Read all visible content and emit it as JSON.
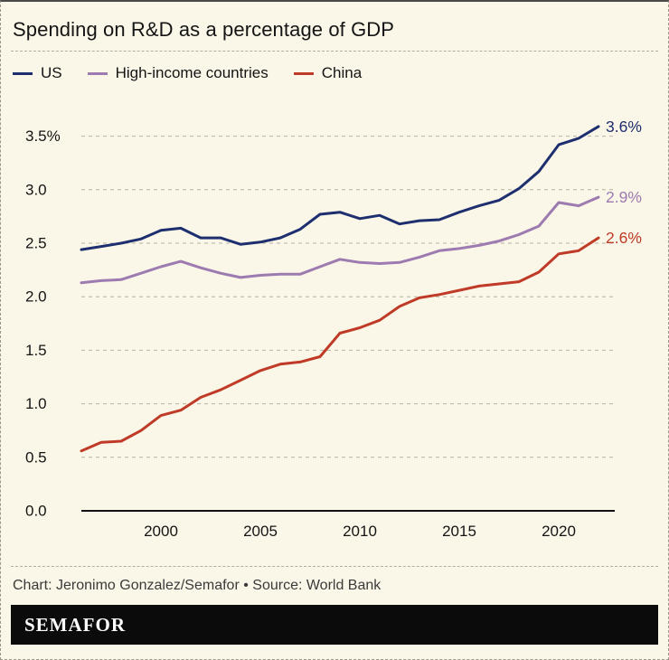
{
  "page": {
    "title": "Spending on R&D as a percentage of GDP",
    "caption": "Chart: Jeronimo Gonzalez/Semafor • Source: World Bank",
    "logo": "SEMAFOR"
  },
  "colors": {
    "background": "#fbf7e8",
    "us": "#1e2f6f",
    "high_income": "#9d7bb0",
    "china": "#bf3a27",
    "grid": "#b5b1a2",
    "axis": "#111111",
    "text": "#141414",
    "caption_text": "#3a3a3a",
    "footer_bg": "#0b0b0b"
  },
  "chart_data": {
    "type": "line",
    "title": "Spending on R&D as a percentage of GDP",
    "xlabel": "",
    "ylabel": "",
    "x": [
      1996,
      1997,
      1998,
      1999,
      2000,
      2001,
      2002,
      2003,
      2004,
      2005,
      2006,
      2007,
      2008,
      2009,
      2010,
      2011,
      2012,
      2013,
      2014,
      2015,
      2016,
      2017,
      2018,
      2019,
      2020,
      2021,
      2022
    ],
    "series": [
      {
        "name": "US",
        "color": "#1e2f6f",
        "end_label": "3.6%",
        "values": [
          2.44,
          2.47,
          2.5,
          2.54,
          2.62,
          2.64,
          2.55,
          2.55,
          2.49,
          2.51,
          2.55,
          2.63,
          2.77,
          2.79,
          2.73,
          2.76,
          2.68,
          2.71,
          2.72,
          2.79,
          2.85,
          2.9,
          3.01,
          3.17,
          3.42,
          3.48,
          3.59
        ]
      },
      {
        "name": "High-income countries",
        "color": "#9d7bb0",
        "end_label": "2.9%",
        "values": [
          2.13,
          2.15,
          2.16,
          2.22,
          2.28,
          2.33,
          2.27,
          2.22,
          2.18,
          2.2,
          2.21,
          2.21,
          2.28,
          2.35,
          2.32,
          2.31,
          2.32,
          2.37,
          2.43,
          2.45,
          2.48,
          2.52,
          2.58,
          2.66,
          2.88,
          2.85,
          2.93
        ]
      },
      {
        "name": "China",
        "color": "#bf3a27",
        "end_label": "2.6%",
        "values": [
          0.56,
          0.64,
          0.65,
          0.75,
          0.89,
          0.94,
          1.06,
          1.13,
          1.22,
          1.31,
          1.37,
          1.39,
          1.44,
          1.66,
          1.71,
          1.78,
          1.91,
          1.99,
          2.02,
          2.06,
          2.1,
          2.12,
          2.14,
          2.23,
          2.4,
          2.43,
          2.55
        ]
      }
    ],
    "ylim": [
      0,
      3.6
    ],
    "yticks": [
      {
        "v": 3.5,
        "label": "3.5%"
      },
      {
        "v": 3.0,
        "label": "3.0"
      },
      {
        "v": 2.5,
        "label": "2.5"
      },
      {
        "v": 2.0,
        "label": "2.0"
      },
      {
        "v": 1.5,
        "label": "1.5"
      },
      {
        "v": 1.0,
        "label": "1.0"
      },
      {
        "v": 0.5,
        "label": "0.5"
      },
      {
        "v": 0.0,
        "label": "0.0"
      }
    ],
    "xticks": [
      2000,
      2005,
      2010,
      2015,
      2020
    ],
    "grid": "dashed horizontal gridlines, solid baseline at 0.0",
    "legend_position": "top-left"
  }
}
